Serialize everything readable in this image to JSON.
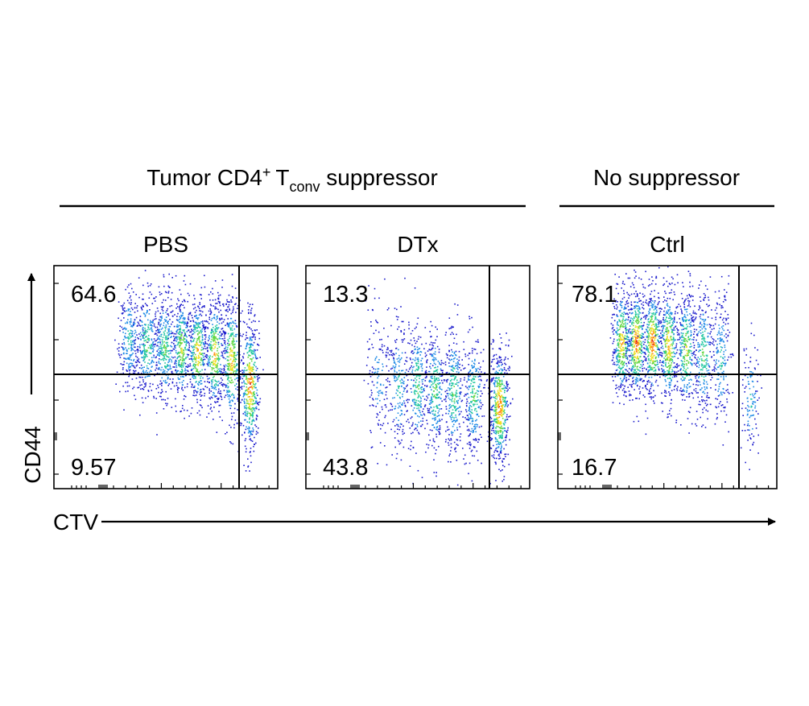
{
  "group_headers": {
    "left": {
      "prefix": "Tumor CD4",
      "superscript": "+",
      "t_letter": "T",
      "subscript": "conv",
      "suffix": " suppressor"
    },
    "right": "No suppressor"
  },
  "axes": {
    "y_label": "CD44",
    "x_label": "CTV"
  },
  "colors": {
    "density_scale": [
      "#1c1ccc",
      "#1f8ae6",
      "#22c7a0",
      "#62d640",
      "#f0e028",
      "#ff8a10",
      "#e01a12"
    ],
    "gate_lines": "#000000"
  },
  "chart_data": [
    {
      "type": "scatter",
      "title": "PBS",
      "xlabel": "CTV",
      "ylabel": "CD44",
      "quadrants": {
        "upper_left_percent": "64.6",
        "lower_left_percent": "9.57"
      },
      "cell_division_peaks": 8,
      "dominant_peak": "undivided population (rightmost), spread across CD44 gate"
    },
    {
      "type": "scatter",
      "title": "DTx",
      "xlabel": "CTV",
      "ylabel": "CD44",
      "quadrants": {
        "upper_left_percent": "13.3",
        "lower_left_percent": "43.8"
      },
      "cell_division_peaks": 7,
      "dominant_peak": "undivided population (rightmost), CD44-low"
    },
    {
      "type": "scatter",
      "title": "Ctrl",
      "xlabel": "CTV",
      "ylabel": "CD44",
      "quadrants": {
        "upper_left_percent": "78.1",
        "lower_left_percent": "16.7"
      },
      "cell_division_peaks": 8,
      "dominant_peak": "highly divided populations (left), CD44-high"
    }
  ]
}
